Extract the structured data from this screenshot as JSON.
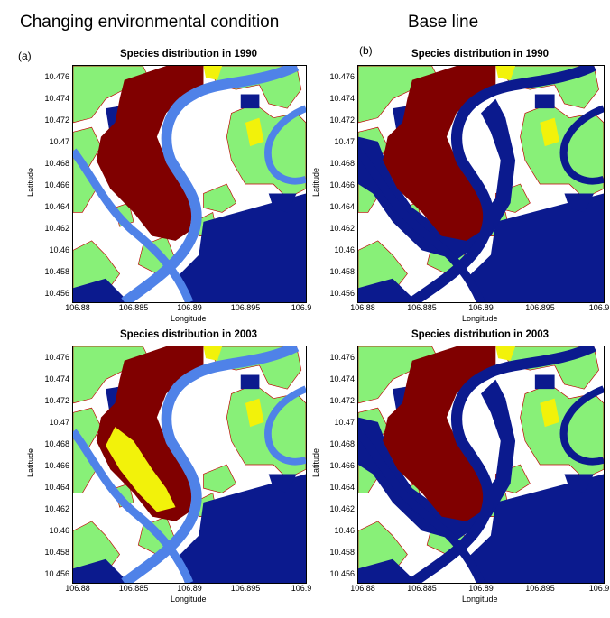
{
  "headings": {
    "left": "Changing environmental condition",
    "right": "Base line"
  },
  "panel_letters": {
    "a": "(a)",
    "b": "(b)"
  },
  "colors": {
    "water_blue": "#4f82e8",
    "dark_blue": "#0b1a8e",
    "dark_red": "#800000",
    "light_green": "#88f078",
    "yellow": "#f2f20a",
    "white": "#ffffff"
  },
  "maps": [
    {
      "title": "Species distribution in 1990",
      "xlabel": "Longitude",
      "ylabel": "Latitude",
      "variant": "changing-1990"
    },
    {
      "title": "Species distribution in 1990",
      "xlabel": "Longitude",
      "ylabel": "Latitude",
      "variant": "baseline-1990"
    },
    {
      "title": "Species distribution in 2003",
      "xlabel": "Longitude",
      "ylabel": "Latitude",
      "variant": "changing-2003"
    },
    {
      "title": "Species distribution in 2003",
      "xlabel": "Longitude",
      "ylabel": "Latitude",
      "variant": "baseline-2003"
    }
  ],
  "axes": {
    "x_ticks": [
      "106.88",
      "106.885",
      "106.89",
      "106.895",
      "106.9"
    ],
    "y_ticks": [
      "10.476",
      "10.474",
      "10.472",
      "10.47",
      "10.468",
      "10.466",
      "10.464",
      "10.462",
      "10.46",
      "10.458",
      "10.456"
    ]
  }
}
